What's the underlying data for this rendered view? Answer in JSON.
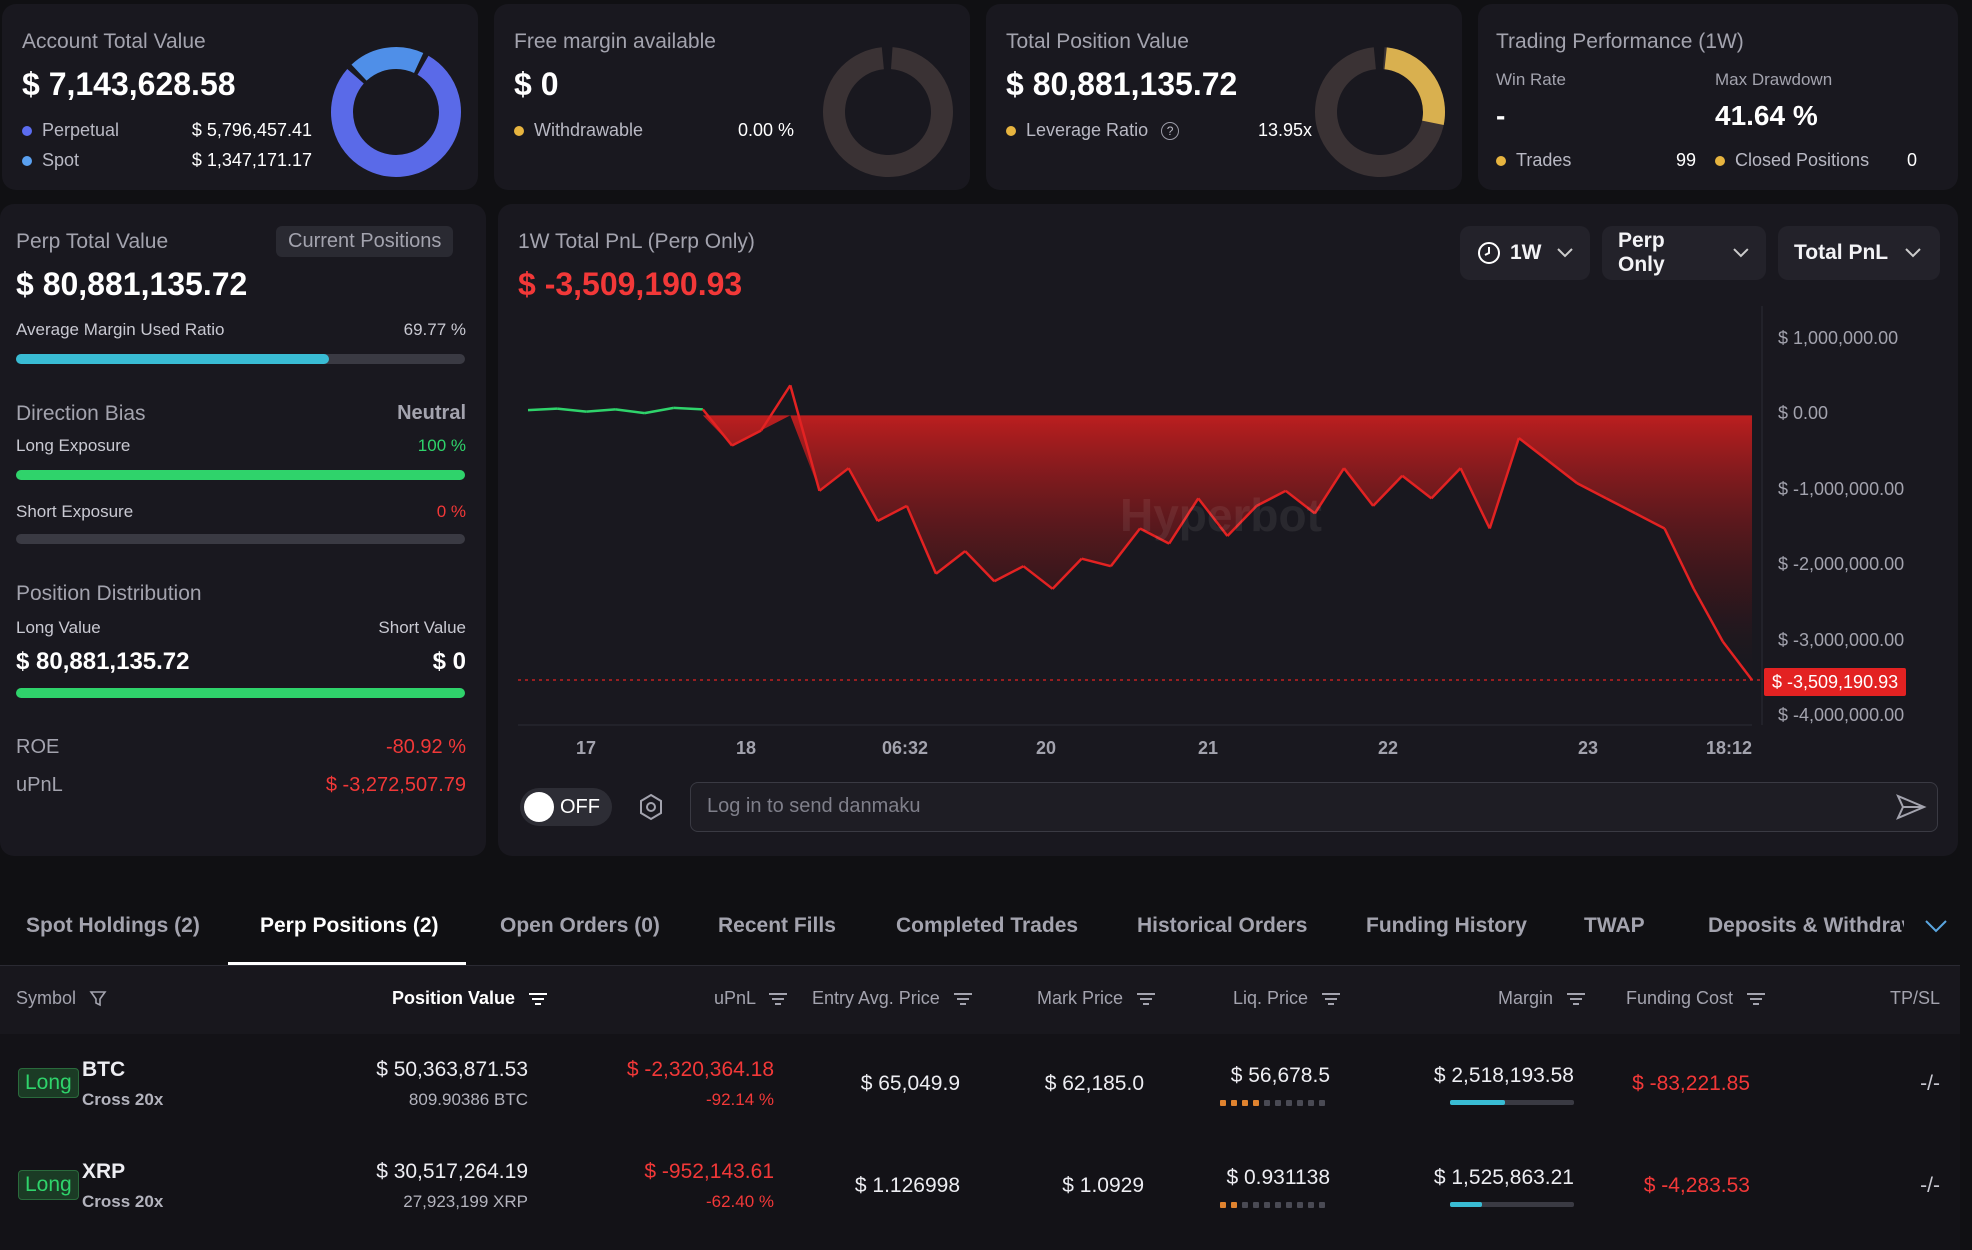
{
  "summary": {
    "account": {
      "label": "Account Total Value",
      "value": "$ 7,143,628.58",
      "rows": [
        {
          "name": "Perpetual",
          "value": "$ 5,796,457.41",
          "color": "#5b6cf0"
        },
        {
          "name": "Spot",
          "value": "$ 1,347,171.17",
          "color": "#5aa0f0"
        }
      ]
    },
    "margin": {
      "label": "Free margin available",
      "value": "$ 0",
      "row": {
        "name": "Withdrawable",
        "value": "0.00 %",
        "color": "#e7b43f"
      }
    },
    "position": {
      "label": "Total Position Value",
      "value": "$ 80,881,135.72",
      "row": {
        "name": "Leverage Ratio",
        "value": "13.95x",
        "color": "#e7b43f"
      }
    },
    "performance": {
      "label": "Trading Performance (1W)",
      "win_rate_label": "Win Rate",
      "win_rate": "-",
      "max_drawdown_label": "Max Drawdown",
      "max_drawdown": "41.64 %",
      "trades_label": "Trades",
      "trades": "99",
      "closed_label": "Closed Positions",
      "closed": "0"
    }
  },
  "perp": {
    "label": "Perp Total Value",
    "tab": "Current Positions",
    "value": "$ 80,881,135.72",
    "margin_ratio_label": "Average Margin Used Ratio",
    "margin_ratio": "69.77 %",
    "margin_ratio_fraction": 0.6977,
    "bias_label": "Direction Bias",
    "bias_value": "Neutral",
    "long_label": "Long Exposure",
    "long_value": "100 %",
    "long_fraction": 1.0,
    "short_label": "Short Exposure",
    "short_value": "0 %",
    "short_fraction": 0.0,
    "dist_label": "Position Distribution",
    "long_value_label": "Long Value",
    "short_value_label": "Short Value",
    "long_amount": "$ 80,881,135.72",
    "short_amount": "$ 0",
    "roe_label": "ROE",
    "roe": "-80.92 %",
    "upnl_label": "uPnL",
    "upnl": "$ -3,272,507.79"
  },
  "pnl_chart": {
    "title": "1W Total PnL (Perp Only)",
    "value": "$ -3,509,190.93",
    "filters": [
      "1W",
      "Perp Only",
      "Total PnL"
    ],
    "watermark": "Hyperbot",
    "toggle_label": "OFF",
    "danmaku_placeholder": "Log in to send danmaku"
  },
  "chart_data": {
    "type": "area",
    "x_labels": [
      "17",
      "18",
      "06:32",
      "20",
      "21",
      "22",
      "23",
      "18:12"
    ],
    "y_ticks": [
      "$ 1,000,000.00",
      "$ 0.00",
      "$ -1,000,000.00",
      "$ -2,000,000.00",
      "$ -3,000,000.00",
      "$ -4,000,000.00"
    ],
    "ylim": [
      -4000000,
      1000000
    ],
    "current_label": "$ -3,509,190.93",
    "current_value": -3509190.93,
    "series": [
      {
        "values": [
          70000,
          90000,
          50000,
          80000,
          30000,
          100000,
          80000,
          -400000,
          -200000,
          400000,
          -1000000,
          -700000,
          -1400000,
          -1200000,
          -2100000,
          -1800000,
          -2200000,
          -2000000,
          -2300000,
          -1900000,
          -2000000,
          -1500000,
          -1700000,
          -1100000,
          -1600000,
          -1200000,
          -1000000,
          -1300000,
          -700000,
          -1200000,
          -800000,
          -1100000,
          -700000,
          -1500000,
          -300000,
          -600000,
          -900000,
          -1100000,
          -1300000,
          -1500000,
          -2300000,
          -3000000,
          -3509190.93
        ],
        "positive_color": "#2fd36b",
        "negative_color": "#e32222"
      }
    ]
  },
  "tabs": [
    "Spot Holdings (2)",
    "Perp Positions (2)",
    "Open Orders (0)",
    "Recent Fills",
    "Completed Trades",
    "Historical Orders",
    "Funding History",
    "TWAP",
    "Deposits & Withdrav"
  ],
  "columns": [
    "Symbol",
    "Position Value",
    "uPnL",
    "Entry Avg. Price",
    "Mark Price",
    "Liq. Price",
    "Margin",
    "Funding Cost",
    "TP/SL"
  ],
  "positions": [
    {
      "side": "Long",
      "symbol": "BTC",
      "mode": "Cross 20x",
      "value": "$ 50,363,871.53",
      "size": "809.90386 BTC",
      "upnl": "$ -2,320,364.18",
      "upnl_pct": "-92.14 %",
      "entry": "$ 65,049.9",
      "mark": "$ 62,185.0",
      "liq": "$ 56,678.5",
      "liq_risk": 4,
      "margin": "$ 2,518,193.58",
      "margin_fraction": 0.44,
      "funding": "$ -83,221.85",
      "tpsl": "-/-"
    },
    {
      "side": "Long",
      "symbol": "XRP",
      "mode": "Cross 20x",
      "value": "$ 30,517,264.19",
      "size": "27,923,199 XRP",
      "upnl": "$ -952,143.61",
      "upnl_pct": "-62.40 %",
      "entry": "$ 1.126998",
      "mark": "$ 1.0929",
      "liq": "$ 0.931138",
      "liq_risk": 2,
      "margin": "$ 1,525,863.21",
      "margin_fraction": 0.26,
      "funding": "$ -4,283.53",
      "tpsl": "-/-"
    }
  ]
}
